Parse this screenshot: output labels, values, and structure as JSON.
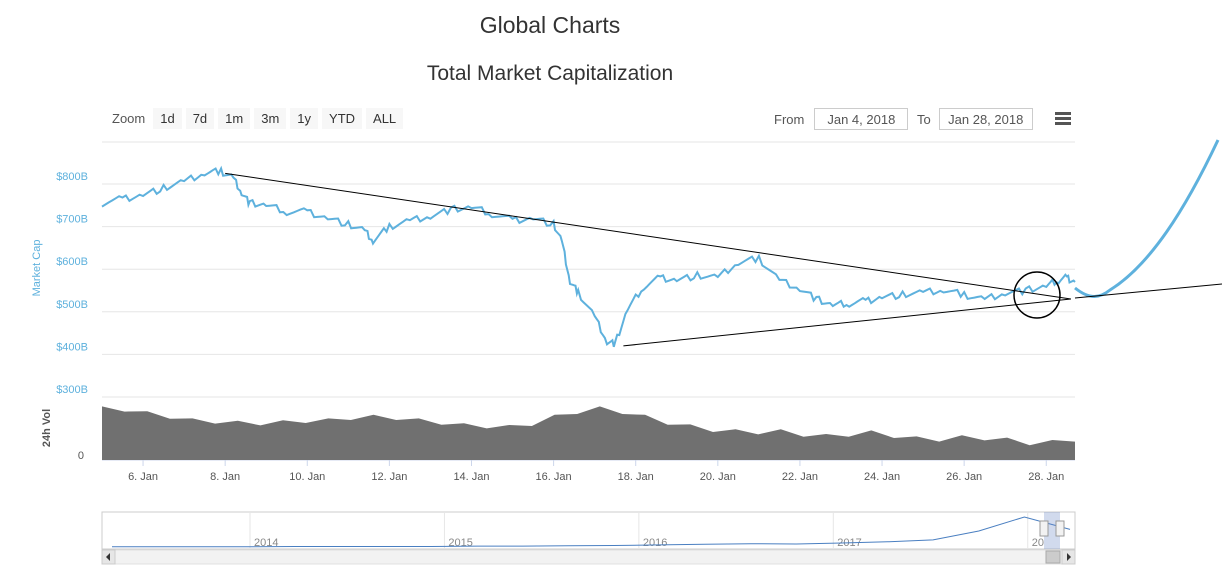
{
  "header": {
    "title": "Global Charts"
  },
  "toolbar": {
    "zoom_label": "Zoom",
    "zoom_buttons": [
      "1d",
      "7d",
      "1m",
      "3m",
      "1y",
      "YTD",
      "ALL"
    ],
    "from_label": "From",
    "from_value": "Jan 4, 2018",
    "to_label": "To",
    "to_value": "Jan 28, 2018"
  },
  "colors": {
    "series": "#5eb1dd",
    "volume": "#707070",
    "trend": "#000000"
  },
  "chart_data": {
    "type": "line",
    "title": "Total Market Capitalization",
    "ylabel": "Market Cap",
    "ylabel_volume": "24h Vol",
    "ylim": [
      300,
      900
    ],
    "y_ticks": [
      "$800B",
      "$700B",
      "$600B",
      "$500B",
      "$400B",
      "$300B"
    ],
    "y_tick_values": [
      800,
      700,
      600,
      500,
      400,
      300
    ],
    "volume_tick": "0",
    "x_tick_labels": [
      "6. Jan",
      "8. Jan",
      "10. Jan",
      "12. Jan",
      "14. Jan",
      "16. Jan",
      "18. Jan",
      "20. Jan",
      "22. Jan",
      "24. Jan",
      "26. Jan",
      "28. Jan"
    ],
    "x_tick_days": [
      6,
      8,
      10,
      12,
      14,
      16,
      18,
      20,
      22,
      24,
      26,
      28
    ],
    "xlim_days": [
      5,
      28.7
    ],
    "series": [
      {
        "name": "Market Cap",
        "x_days": [
          5.0,
          5.5,
          6.0,
          6.5,
          7.0,
          7.5,
          7.9,
          8.2,
          8.4,
          8.6,
          9.0,
          9.5,
          10.0,
          10.5,
          11.0,
          11.4,
          11.6,
          12.0,
          12.5,
          13.0,
          13.5,
          14.0,
          14.5,
          15.0,
          15.5,
          16.0,
          16.2,
          16.4,
          16.6,
          17.0,
          17.3,
          17.5,
          17.8,
          18.2,
          18.6,
          19.0,
          19.5,
          20.0,
          20.5,
          21.0,
          21.5,
          22.0,
          22.4,
          22.8,
          23.2,
          23.6,
          24.0,
          24.5,
          25.0,
          25.5,
          26.0,
          26.5,
          27.0,
          27.5,
          28.0,
          28.3,
          28.5,
          28.7
        ],
        "values": [
          755,
          765,
          775,
          790,
          805,
          825,
          830,
          815,
          780,
          755,
          750,
          735,
          735,
          720,
          705,
          690,
          665,
          700,
          715,
          725,
          740,
          745,
          730,
          715,
          720,
          705,
          665,
          570,
          545,
          490,
          430,
          425,
          505,
          560,
          580,
          575,
          585,
          580,
          615,
          625,
          575,
          555,
          530,
          515,
          520,
          525,
          535,
          540,
          545,
          550,
          540,
          530,
          545,
          550,
          560,
          575,
          580,
          570
        ]
      }
    ],
    "volume_series": {
      "name": "24h Vol",
      "values": [
        0.86,
        0.84,
        0.78,
        0.72,
        0.66,
        0.64,
        0.62,
        0.61,
        0.63,
        0.65,
        0.66,
        0.7,
        0.72,
        0.7,
        0.66,
        0.62,
        0.58,
        0.56,
        0.55,
        0.6,
        0.72,
        0.8,
        0.86,
        0.8,
        0.72,
        0.62,
        0.56,
        0.5,
        0.48,
        0.46,
        0.48,
        0.42,
        0.4,
        0.42,
        0.46,
        0.4,
        0.36,
        0.34,
        0.38,
        0.36,
        0.34,
        0.28,
        0.3,
        0.34
      ],
      "vmax": 1.0
    },
    "trendlines": [
      {
        "from": [
          8.0,
          825
        ],
        "to": [
          28.6,
          530
        ]
      },
      {
        "from": [
          17.7,
          420
        ],
        "to": [
          28.6,
          530
        ]
      }
    ],
    "navigator": {
      "year_labels": [
        "2014",
        "2015",
        "2016",
        "2017",
        "20"
      ],
      "year_positions": [
        0,
        1,
        2,
        3,
        4
      ],
      "values": [
        0.04,
        0.04,
        0.04,
        0.04,
        0.05,
        0.05,
        0.05,
        0.05,
        0.06,
        0.06,
        0.07,
        0.08,
        0.1,
        0.12,
        0.14,
        0.13,
        0.16,
        0.2,
        0.26,
        0.55,
        1.0,
        0.6
      ]
    }
  }
}
